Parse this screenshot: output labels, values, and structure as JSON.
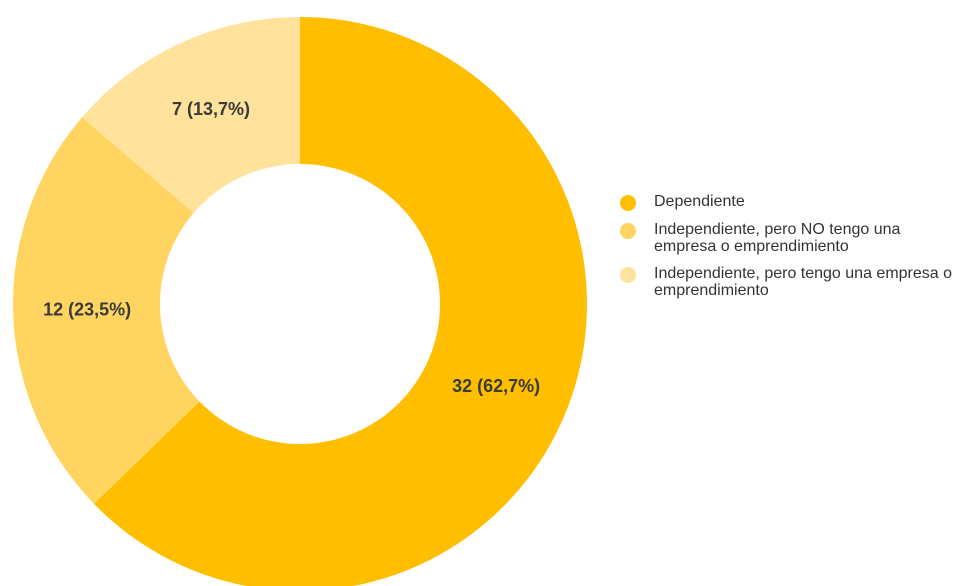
{
  "chart_data": {
    "type": "pie",
    "donut": true,
    "legend_position": "right",
    "categories": [
      "Dependiente",
      "Independiente, pero NO tengo una empresa o emprendimiento",
      "Independiente, pero tengo una empresa o emprendimiento"
    ],
    "values": [
      32,
      12,
      7
    ],
    "percentages": [
      62.7,
      23.5,
      13.7
    ],
    "labels": [
      "32 (62,7%)",
      "12 (23,5%)",
      "7 (13,7%)"
    ],
    "colors": [
      "#FFBF00",
      "#FFD460",
      "#FFE29B"
    ]
  },
  "legend": {
    "items": [
      {
        "label": "Dependiente",
        "color": "#FFBF00"
      },
      {
        "label": "Independiente, pero NO tengo una empresa o emprendimiento",
        "color": "#FFD460"
      },
      {
        "label": "Independiente, pero tengo una empresa o emprendimiento",
        "color": "#FFE29B"
      }
    ]
  }
}
